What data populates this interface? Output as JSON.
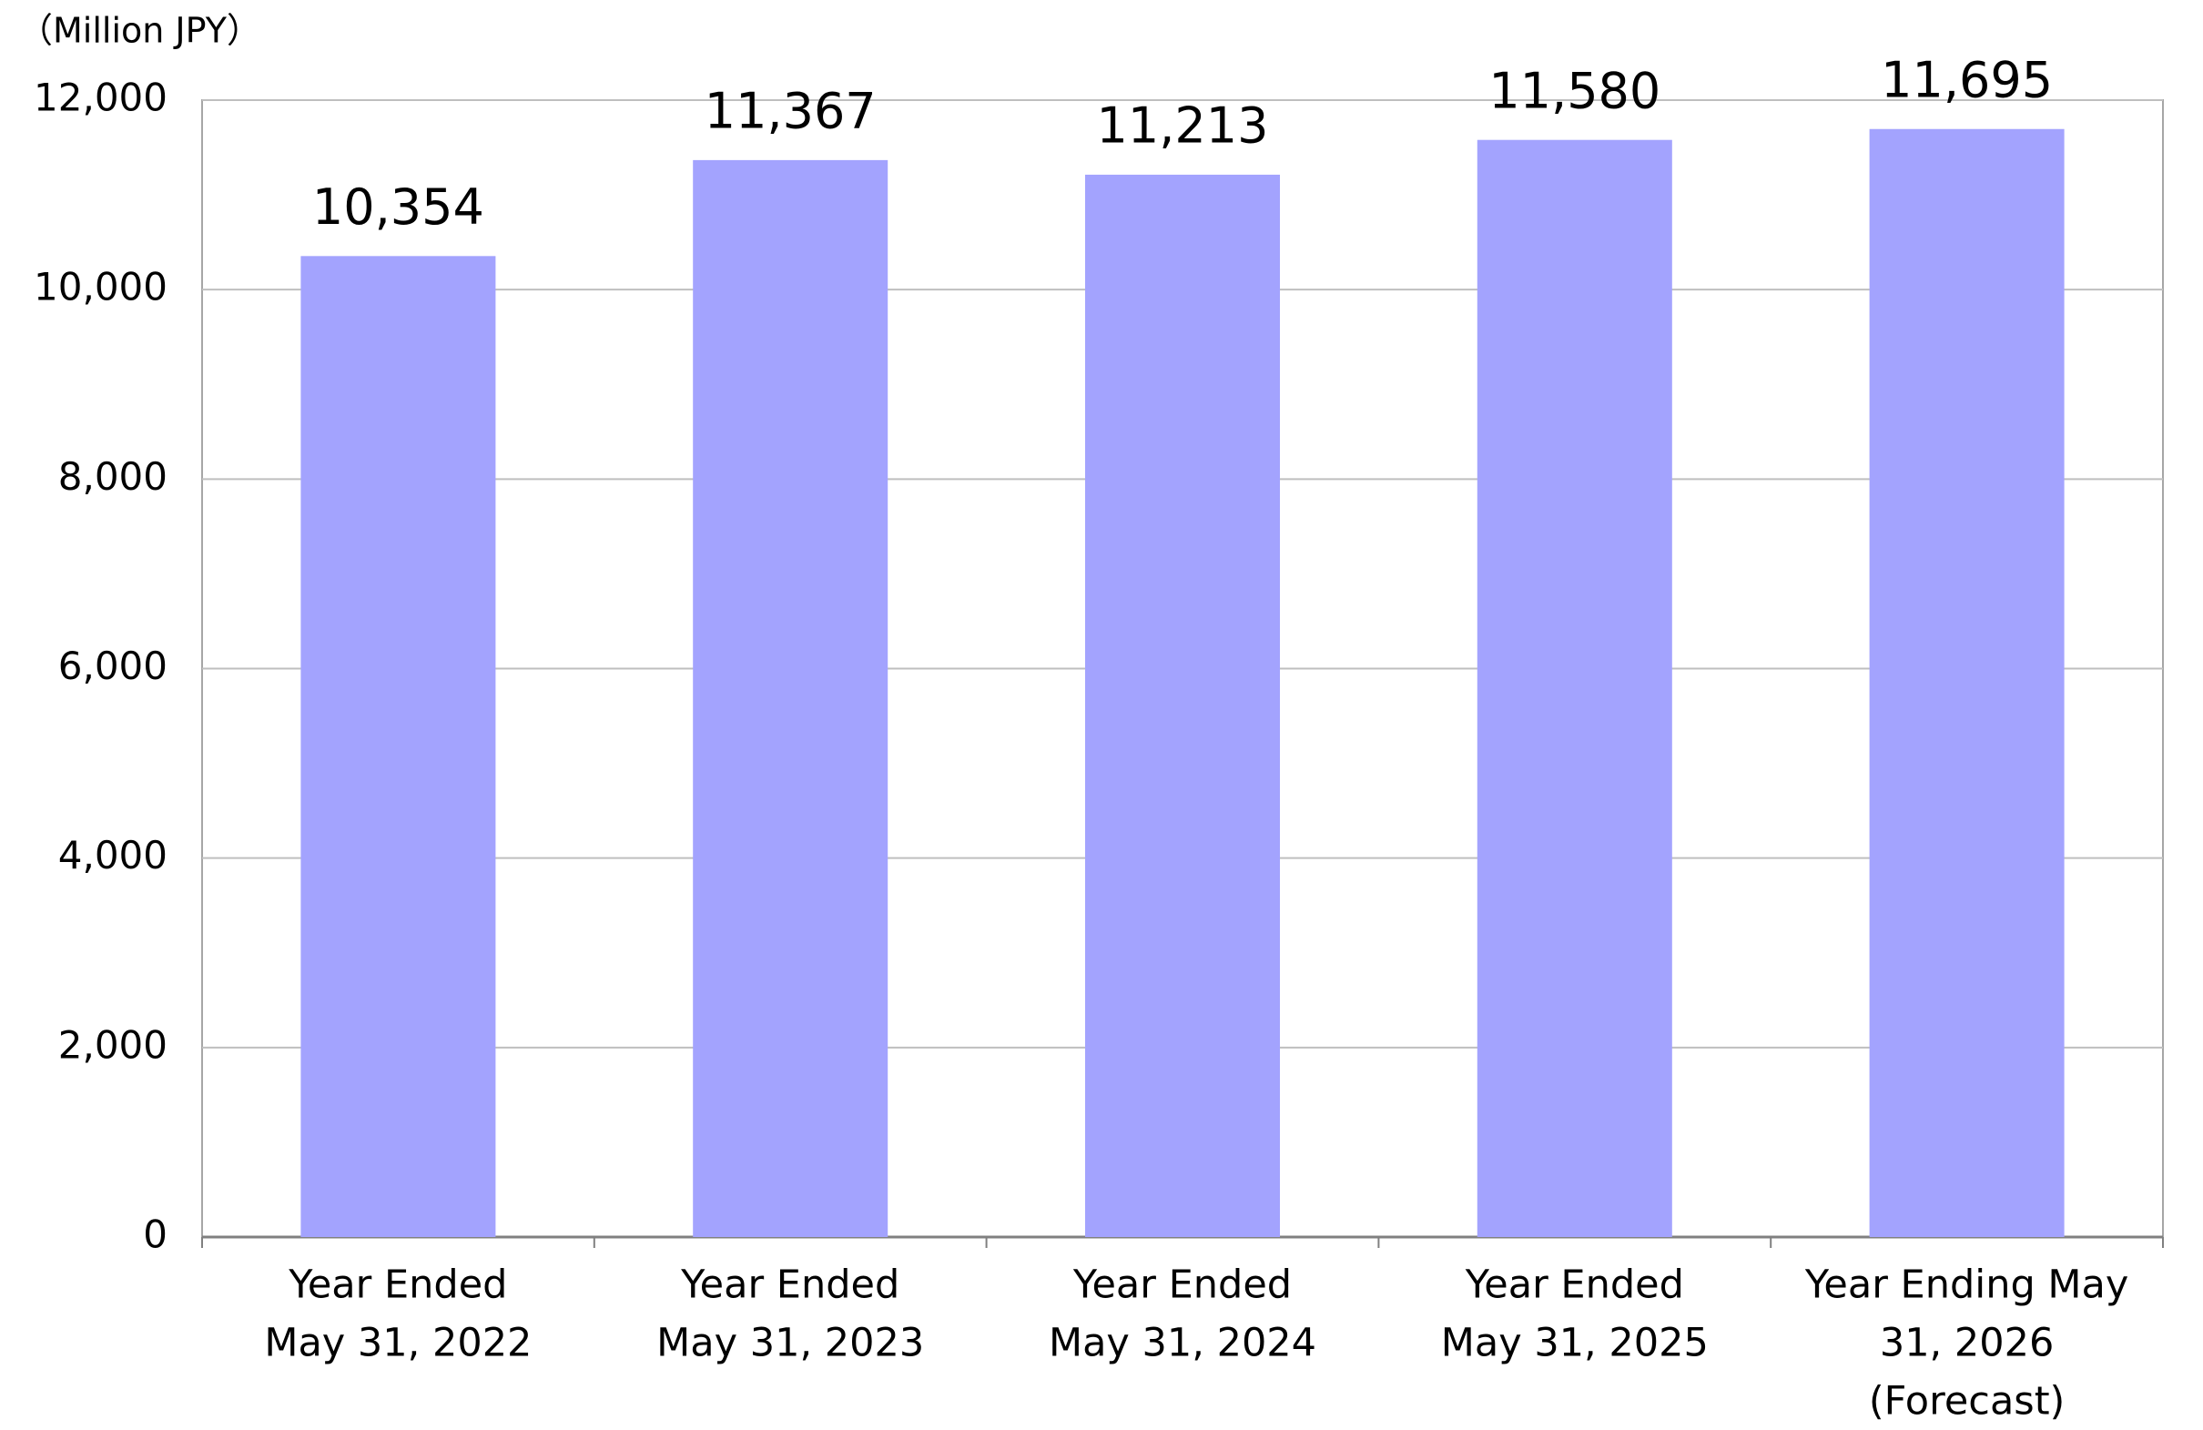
{
  "chart_data": {
    "type": "bar",
    "unit_label": "（Million JPY）",
    "categories": [
      [
        "Year Ended",
        "May 31, 2022"
      ],
      [
        "Year Ended",
        "May 31, 2023"
      ],
      [
        "Year Ended",
        "May 31, 2024"
      ],
      [
        "Year Ended",
        "May 31, 2025"
      ],
      [
        "Year Ending May",
        "31, 2026",
        "(Forecast)"
      ]
    ],
    "values": [
      10354,
      11367,
      11213,
      11580,
      11695
    ],
    "value_labels": [
      "10,354",
      "11,367",
      "11,213",
      "11,580",
      "11,695"
    ],
    "color": "#a3a3fe",
    "ylim": [
      0,
      12000
    ],
    "yticks": [
      0,
      {
        "value": 2000,
        "label": "2,000"
      },
      {
        "value": 4000,
        "label": "4,000"
      },
      {
        "value": 6000,
        "label": "6,000"
      },
      {
        "value": 8000,
        "label": "8,000"
      },
      {
        "value": 10000,
        "label": "10,000"
      },
      {
        "value": 12000,
        "label": "12,000"
      }
    ],
    "grid": true
  }
}
